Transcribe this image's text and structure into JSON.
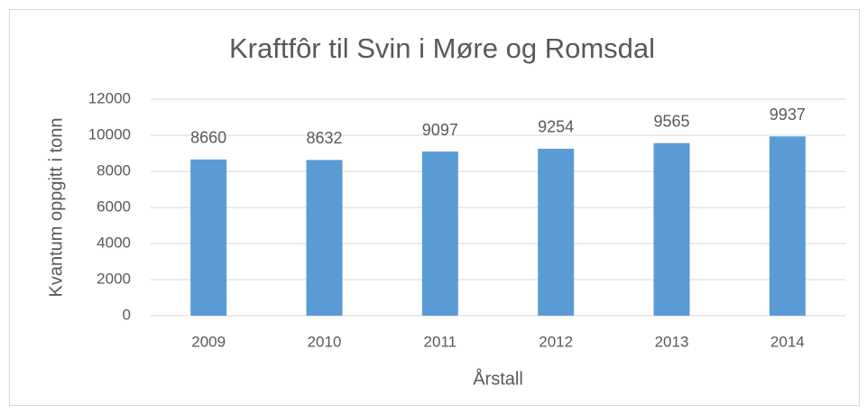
{
  "chart_data": {
    "type": "bar",
    "title": "Kraftfôr til Svin i Møre og Romsdal",
    "x_label": "Årstall",
    "y_label": "Kvantum oppgitt i tonn",
    "categories": [
      "2009",
      "2010",
      "2011",
      "2012",
      "2013",
      "2014"
    ],
    "values": [
      8660,
      8632,
      9097,
      9254,
      9565,
      9937
    ],
    "color": "#5b9bd5",
    "ylim": [
      0,
      12000
    ],
    "yticks": [
      0,
      2000,
      4000,
      6000,
      8000,
      10000,
      12000
    ],
    "grid": true
  }
}
